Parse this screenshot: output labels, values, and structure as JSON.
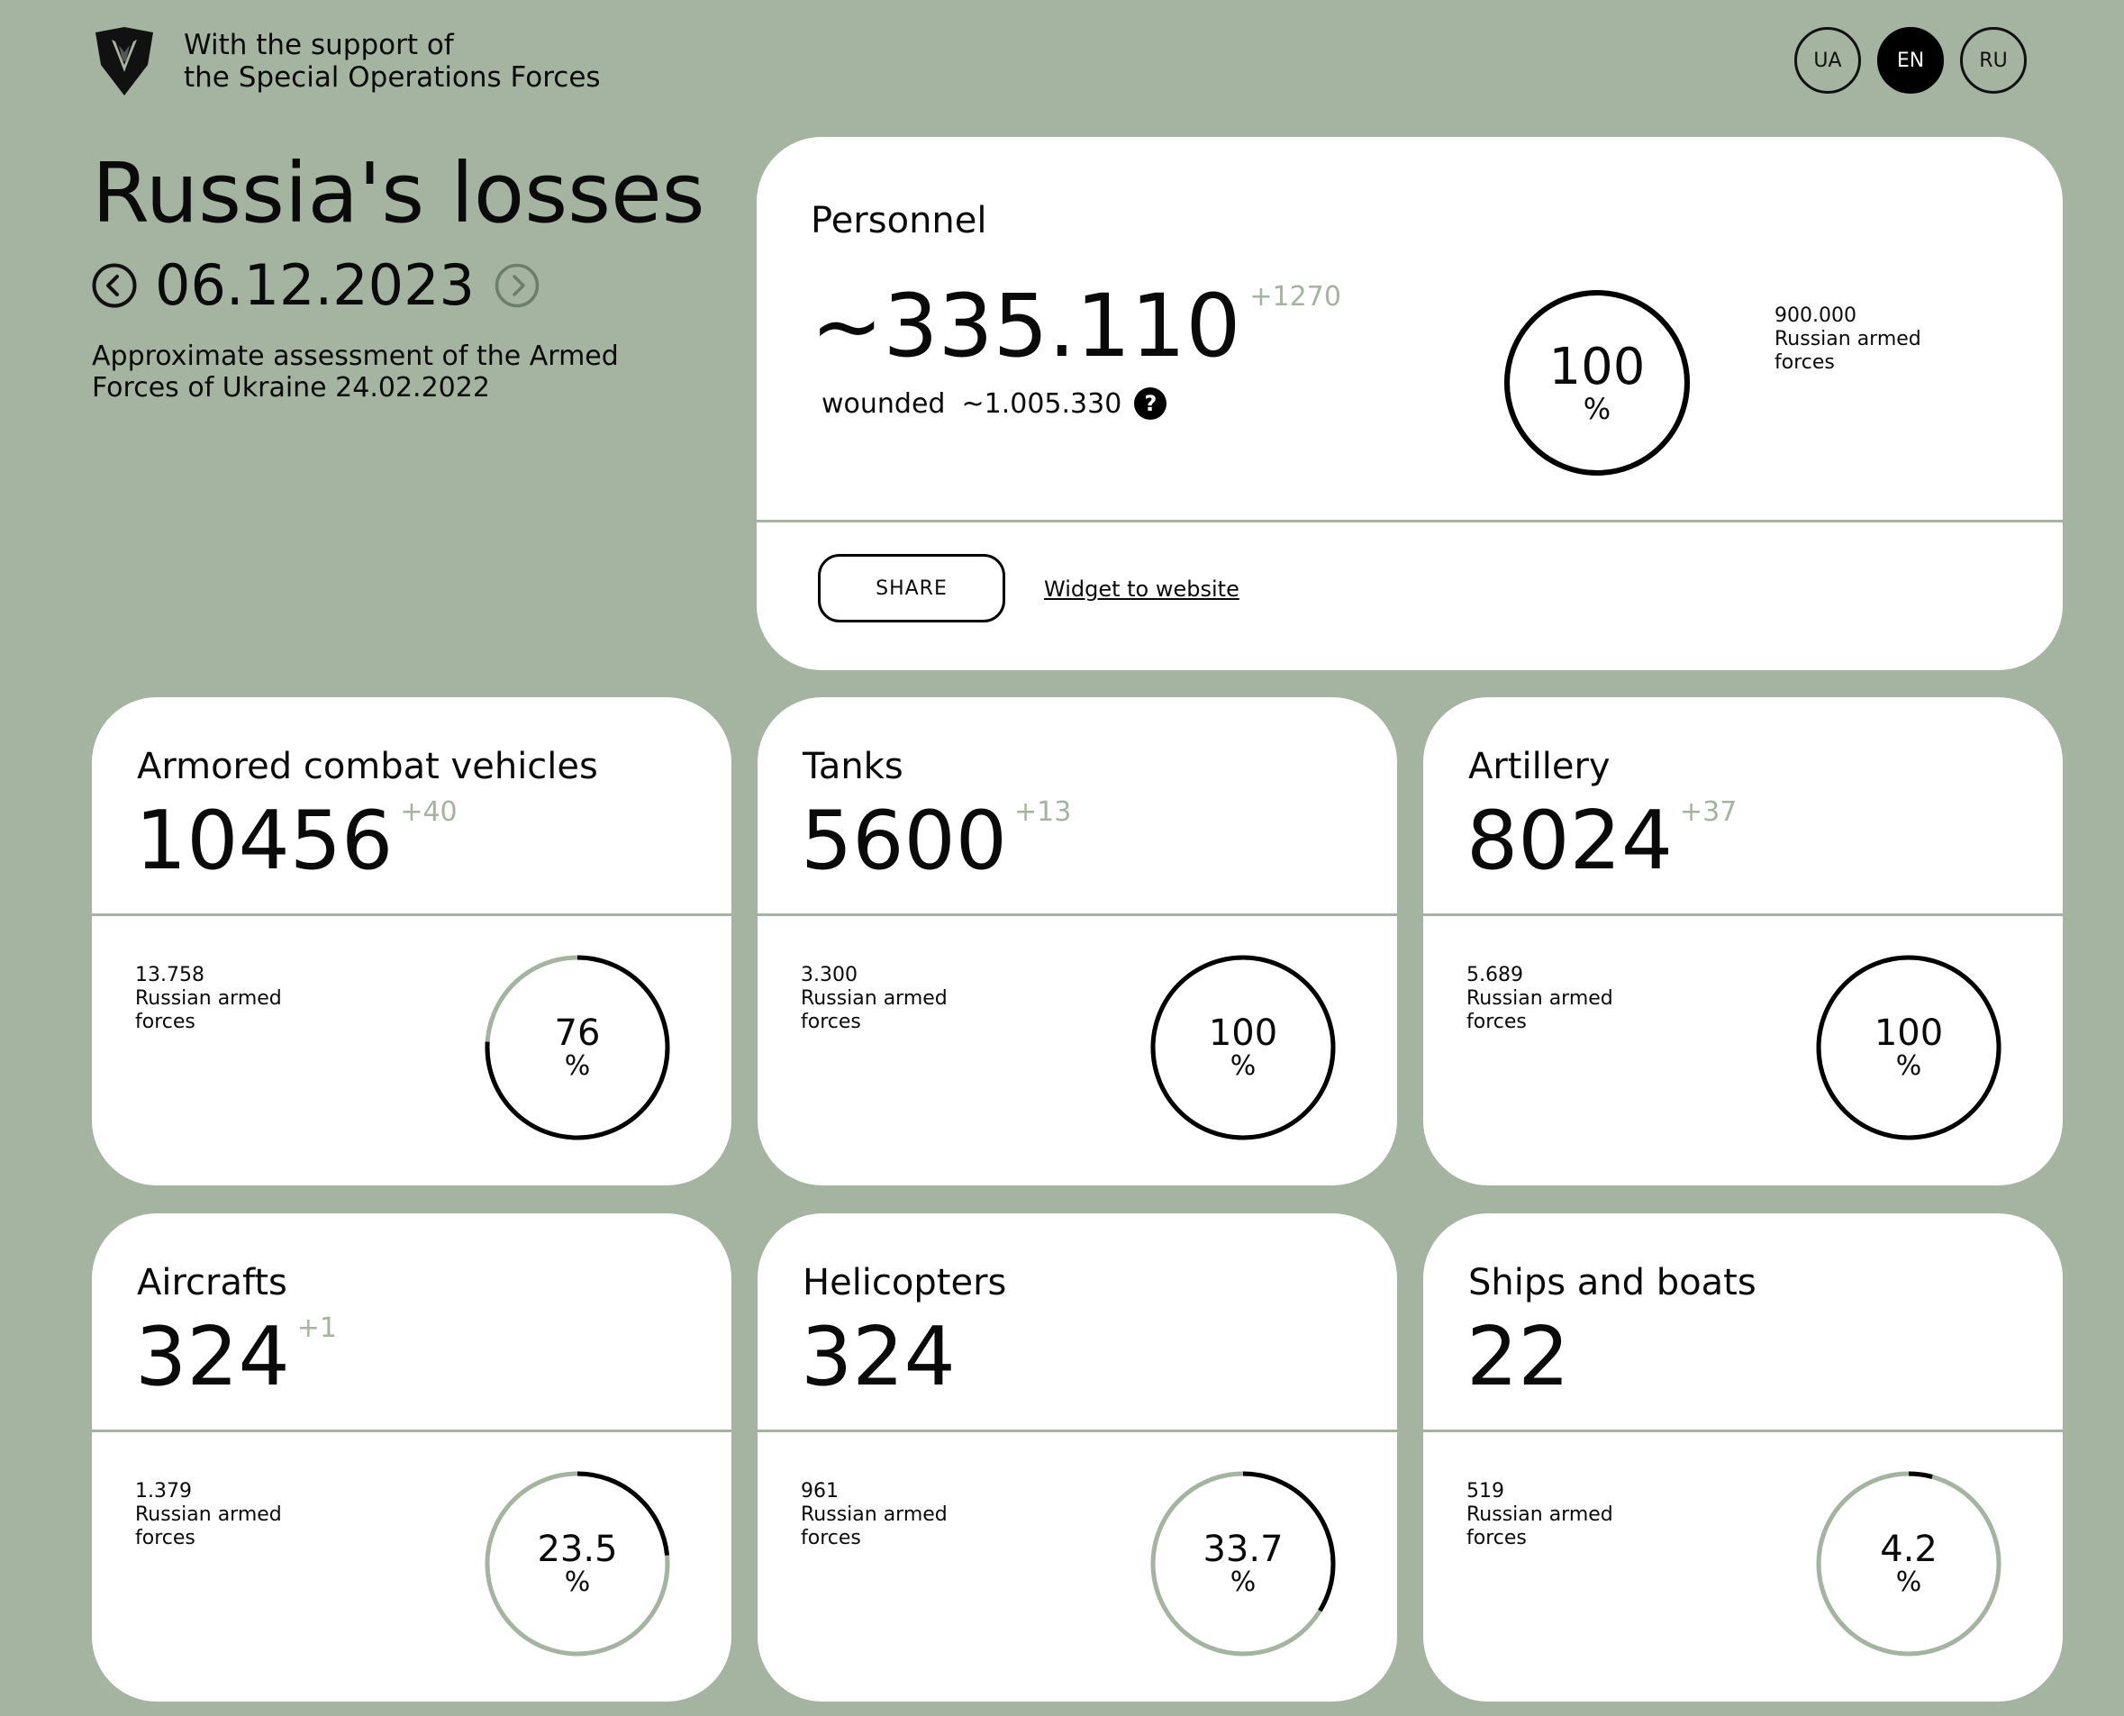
{
  "header": {
    "support_line1": "With the support of",
    "support_line2": "the Special Operations Forces",
    "languages": [
      {
        "code": "UA",
        "active": false
      },
      {
        "code": "EN",
        "active": true
      },
      {
        "code": "RU",
        "active": false
      }
    ]
  },
  "title": "Russia's losses",
  "date": "06.12.2023",
  "assessment": "Approximate assessment of the Armed Forces of Ukraine 24.02.2022",
  "personnel": {
    "title": "Personnel",
    "value": "~335.110",
    "delta": "+1270",
    "wounded_label": "wounded",
    "wounded_value": "~1.005.330",
    "help_icon": "?",
    "percent": "100",
    "percent_fraction": 1.0,
    "percent_sign": "%",
    "reference_value": "900.000",
    "reference_line1": "Russian armed",
    "reference_line2": "forces",
    "share_label": "SHARE",
    "widget_label": "Widget to website"
  },
  "cards": [
    {
      "title": "Armored combat vehicles",
      "value": "10456",
      "delta": "+40",
      "ref_value": "13.758",
      "ref_line1": "Russian armed",
      "ref_line2": "forces",
      "percent": "76",
      "fraction": 0.76,
      "sign": "%"
    },
    {
      "title": "Tanks",
      "value": "5600",
      "delta": "+13",
      "ref_value": "3.300",
      "ref_line1": "Russian armed",
      "ref_line2": "forces",
      "percent": "100",
      "fraction": 1.0,
      "sign": "%"
    },
    {
      "title": "Artillery",
      "value": "8024",
      "delta": "+37",
      "ref_value": "5.689",
      "ref_line1": "Russian armed",
      "ref_line2": "forces",
      "percent": "100",
      "fraction": 1.0,
      "sign": "%"
    },
    {
      "title": "Aircrafts",
      "value": "324",
      "delta": "+1",
      "ref_value": "1.379",
      "ref_line1": "Russian armed",
      "ref_line2": "forces",
      "percent": "23.5",
      "fraction": 0.235,
      "sign": "%"
    },
    {
      "title": "Helicopters",
      "value": "324",
      "delta": "",
      "ref_value": "961",
      "ref_line1": "Russian armed",
      "ref_line2": "forces",
      "percent": "33.7",
      "fraction": 0.337,
      "sign": "%"
    },
    {
      "title": "Ships and boats",
      "value": "22",
      "delta": "",
      "ref_value": "519",
      "ref_line1": "Russian armed",
      "ref_line2": "forces",
      "percent": "4.2",
      "fraction": 0.042,
      "sign": "%"
    }
  ],
  "colors": {
    "background": "#a4b4a0",
    "ring_track": "#a4b4a0",
    "ring_fill": "#000000",
    "delta": "#a4b4a0"
  }
}
